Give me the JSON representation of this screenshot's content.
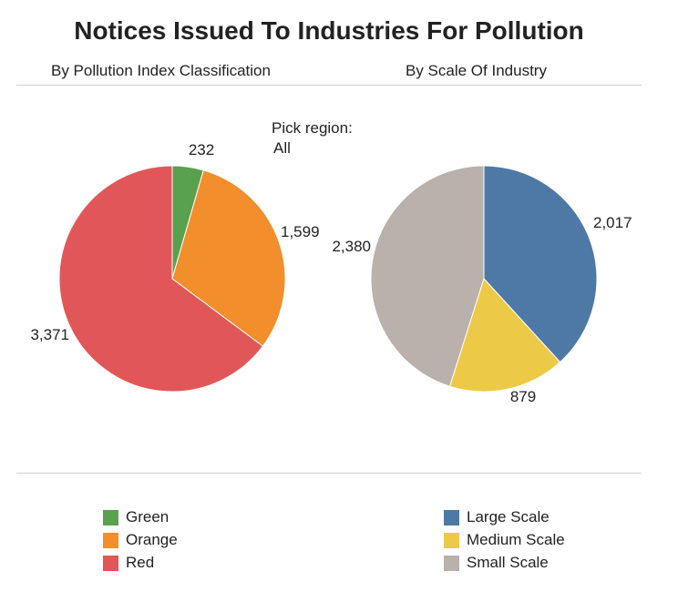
{
  "title": "Notices Issued To Industries For Pollution",
  "filter": {
    "label": "Pick region:",
    "value": "All"
  },
  "chart_data": [
    {
      "type": "pie",
      "title": "By Pollution Index Classification",
      "categories": [
        "Green",
        "Orange",
        "Red"
      ],
      "values": [
        232,
        1599,
        3371
      ],
      "labels": [
        "232",
        "1,599",
        "3,371"
      ],
      "colors": [
        "#59a14f",
        "#f28e2b",
        "#e15759"
      ],
      "legend": "bottom-left"
    },
    {
      "type": "pie",
      "title": "By Scale Of Industry",
      "categories": [
        "Large Scale",
        "Medium Scale",
        "Small Scale"
      ],
      "values": [
        2017,
        879,
        2380
      ],
      "labels": [
        "2,017",
        "879",
        "2,380"
      ],
      "colors": [
        "#4e79a7",
        "#edc948",
        "#bab0ac"
      ],
      "legend": "bottom-right"
    }
  ]
}
